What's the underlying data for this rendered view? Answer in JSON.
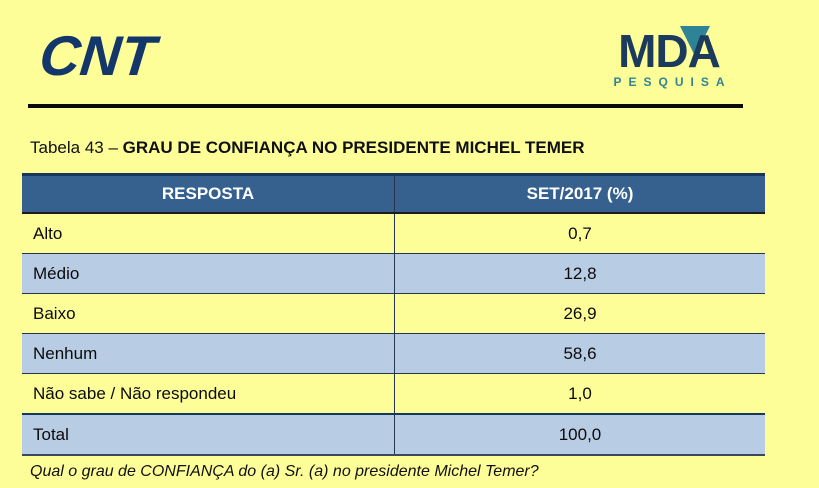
{
  "header": {
    "cnt_logo_text": "CNT",
    "mda_logo_text": "MDA",
    "mda_logo_subtext": "PESQUISA"
  },
  "title": {
    "prefix": "Tabela 43 – ",
    "main": "GRAU DE CONFIANÇA NO PRESIDENTE MICHEL TEMER"
  },
  "table": {
    "columns": [
      "RESPOSTA",
      "SET/2017 (%)"
    ],
    "rows": [
      {
        "label": "Alto",
        "value": "0,7"
      },
      {
        "label": "Médio",
        "value": "12,8"
      },
      {
        "label": "Baixo",
        "value": "26,9"
      },
      {
        "label": "Nenhum",
        "value": "58,6"
      },
      {
        "label": "Não sabe / Não respondeu",
        "value": "1,0"
      },
      {
        "label": "Total",
        "value": "100,0"
      }
    ]
  },
  "footer": {
    "question": "Qual o grau de CONFIANÇA do (a) Sr. (a) no presidente Michel Temer?"
  },
  "colors": {
    "page_yellow": "#FEFE99",
    "header_blue": "#36618E",
    "row_light_blue": "#B8CCE4",
    "logo_navy": "#1B3A5C",
    "logo_teal": "#2E8397",
    "rule_black": "#0A0A0A"
  },
  "chart_data": {
    "type": "table",
    "title": "Tabela 43 – GRAU DE CONFIANÇA NO PRESIDENTE MICHEL TEMER",
    "columns": [
      "RESPOSTA",
      "SET/2017 (%)"
    ],
    "categories": [
      "Alto",
      "Médio",
      "Baixo",
      "Nenhum",
      "Não sabe / Não respondeu",
      "Total"
    ],
    "values": [
      0.7,
      12.8,
      26.9,
      58.6,
      1.0,
      100.0
    ]
  }
}
